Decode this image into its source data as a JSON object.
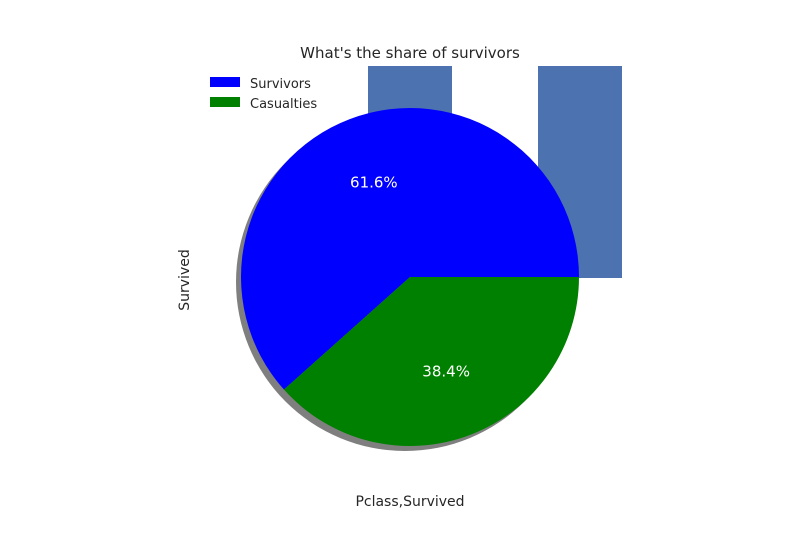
{
  "chart_data": {
    "type": "pie",
    "title": "What's the share of survivors",
    "xlabel": "Pclass,Survived",
    "ylabel": "Survived",
    "slices": [
      {
        "label": "Survivors",
        "value": 61.6,
        "pct_label": "61.6%",
        "color": "#0000ff"
      },
      {
        "label": "Casualties",
        "value": 38.4,
        "pct_label": "38.4%",
        "color": "#008000"
      }
    ],
    "shadow": true,
    "legend": {
      "placement": "upper-left"
    },
    "background_bars": {
      "color": "#4c72b0",
      "count": 2
    }
  }
}
